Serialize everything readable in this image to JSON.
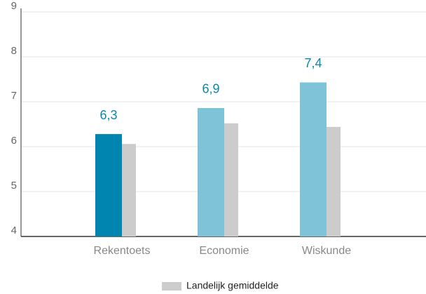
{
  "chart_data": {
    "type": "bar",
    "categories": [
      "Rekentoets",
      "Economie",
      "Wiskunde"
    ],
    "series": [
      {
        "colors": [
          "#0085b0",
          "#7fc3d9",
          "#7fc3d9"
        ],
        "values": [
          6.28,
          6.86,
          7.43
        ],
        "value_labels": [
          "6,3",
          "6,9",
          "7,4"
        ]
      },
      {
        "name": "Landelijk gemiddelde",
        "color": "#cccccc",
        "values": [
          6.06,
          6.52,
          6.44
        ]
      }
    ],
    "ylim": [
      4,
      9
    ],
    "yticks": [
      4,
      5,
      6,
      7,
      8,
      9
    ],
    "grid": true,
    "legend": "bottom"
  }
}
